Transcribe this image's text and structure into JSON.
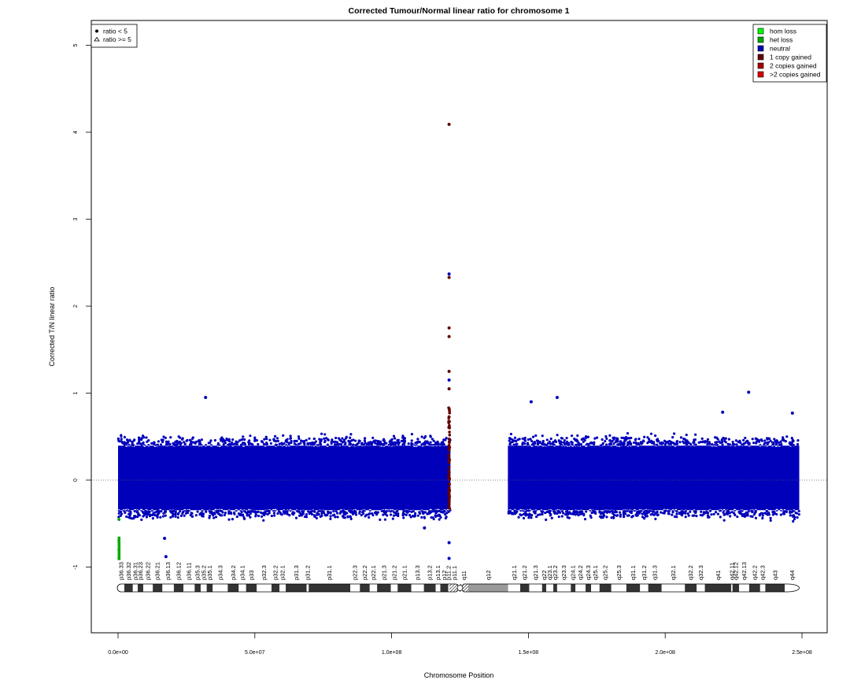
{
  "chart_data": {
    "type": "scatter",
    "title": "Corrected Tumour/Normal linear ratio for chromosome  1",
    "xlabel": "Chromosome Position",
    "ylabel": "Corrected T/N linear ratio",
    "xlim": [
      0,
      250000000
    ],
    "ylim": [
      -1.8,
      5.2
    ],
    "x_tick_labels": [
      {
        "value": 0,
        "label": "0.0e+00"
      },
      {
        "value": 50000000,
        "label": "5.0e+07"
      },
      {
        "value": 100000000,
        "label": "1.0e+08"
      },
      {
        "value": 150000000,
        "label": "1.5e+08"
      },
      {
        "value": 200000000,
        "label": "2.0e+08"
      },
      {
        "value": 250000000,
        "label": "2.5e+08"
      }
    ],
    "y_tick_labels": [
      {
        "value": -1,
        "label": "-1"
      },
      {
        "value": 0,
        "label": "0"
      },
      {
        "value": 1,
        "label": "1"
      },
      {
        "value": 2,
        "label": "2"
      },
      {
        "value": 3,
        "label": "3"
      },
      {
        "value": 4,
        "label": "4"
      },
      {
        "value": 5,
        "label": "5"
      }
    ],
    "reference_line": {
      "y": 0,
      "style": "dotted"
    },
    "shape_legend": {
      "placement": "top-left",
      "entries": [
        {
          "symbol": "filled-circle",
          "label": "ratio < 5"
        },
        {
          "symbol": "open-triangle",
          "label": "ratio >= 5"
        }
      ]
    },
    "color_legend": {
      "placement": "top-right",
      "entries": [
        {
          "label": "hom loss",
          "color": "#00ff00"
        },
        {
          "label": "het loss",
          "color": "#00aa00"
        },
        {
          "label": "neutral",
          "color": "#0000bb"
        },
        {
          "label": "1 copy gained",
          "color": "#660000"
        },
        {
          "label": "2 copies gained",
          "color": "#aa0000"
        },
        {
          "label": ">2 copies gained",
          "color": "#dd0000"
        }
      ]
    },
    "series": [
      {
        "name": "neutral",
        "color": "#0000bb",
        "description_ranges": [
          {
            "x_start": 0,
            "x_end": 121500000,
            "y_min": -0.4,
            "y_max": 0.45
          },
          {
            "x_start": 142500000,
            "x_end": 249000000,
            "y_min": -0.4,
            "y_max": 0.45
          }
        ],
        "outliers": [
          {
            "x": 32000000,
            "y": 0.95
          },
          {
            "x": 160500000,
            "y": 0.95
          },
          {
            "x": 151000000,
            "y": 0.9
          },
          {
            "x": 230500000,
            "y": 1.01
          },
          {
            "x": 221000000,
            "y": 0.78
          },
          {
            "x": 246500000,
            "y": 0.77
          },
          {
            "x": 17000000,
            "y": -0.67
          },
          {
            "x": 17500000,
            "y": -0.88
          },
          {
            "x": 121000000,
            "y": 2.37
          },
          {
            "x": 121000000,
            "y": 1.15
          },
          {
            "x": 121000000,
            "y": -0.72
          },
          {
            "x": 121000000,
            "y": -0.9
          },
          {
            "x": 112000000,
            "y": -0.55
          }
        ]
      },
      {
        "name": "het loss",
        "color": "#00aa00",
        "points": [
          {
            "x": 300000,
            "y": -0.45
          },
          {
            "x": 300000,
            "y": -0.7
          },
          {
            "x": 300000,
            "y": -0.8
          },
          {
            "x": 300000,
            "y": -0.9
          }
        ]
      },
      {
        "name": "1 copy gained",
        "color": "#660000",
        "points": [
          {
            "x": 121000000,
            "y": 4.09
          },
          {
            "x": 121000000,
            "y": 2.33
          },
          {
            "x": 121000000,
            "y": 1.75
          },
          {
            "x": 121000000,
            "y": 1.65
          },
          {
            "x": 121000000,
            "y": 1.25
          },
          {
            "x": 121000000,
            "y": 1.05
          }
        ]
      }
    ],
    "ideogram": {
      "x_start": 0,
      "x_end": 249000000,
      "centromere": 125000000,
      "bands": [
        {
          "label": "p36.33",
          "start": 0,
          "end": 2300000,
          "stain": "white"
        },
        {
          "label": "p36.32",
          "start": 2300000,
          "end": 5400000,
          "stain": "dark"
        },
        {
          "label": "p36.31",
          "start": 5400000,
          "end": 7200000,
          "stain": "white"
        },
        {
          "label": "p36.23",
          "start": 7200000,
          "end": 9200000,
          "stain": "dark"
        },
        {
          "label": "p36.22",
          "start": 9200000,
          "end": 12700000,
          "stain": "white"
        },
        {
          "label": "p36.21",
          "start": 12700000,
          "end": 16200000,
          "stain": "dark"
        },
        {
          "label": "p36.13",
          "start": 16200000,
          "end": 20400000,
          "stain": "white"
        },
        {
          "label": "p36.12",
          "start": 20400000,
          "end": 23900000,
          "stain": "dark"
        },
        {
          "label": "p36.11",
          "start": 23900000,
          "end": 28000000,
          "stain": "white"
        },
        {
          "label": "p35.3",
          "start": 28000000,
          "end": 30200000,
          "stain": "dark"
        },
        {
          "label": "p35.2",
          "start": 30200000,
          "end": 32400000,
          "stain": "white"
        },
        {
          "label": "p35.1",
          "start": 32400000,
          "end": 34600000,
          "stain": "dark"
        },
        {
          "label": "p34.3",
          "start": 34600000,
          "end": 40100000,
          "stain": "white"
        },
        {
          "label": "p34.2",
          "start": 40100000,
          "end": 44100000,
          "stain": "dark"
        },
        {
          "label": "p34.1",
          "start": 44100000,
          "end": 46800000,
          "stain": "white"
        },
        {
          "label": "p33",
          "start": 46800000,
          "end": 50700000,
          "stain": "dark"
        },
        {
          "label": "p32.3",
          "start": 50700000,
          "end": 56100000,
          "stain": "white"
        },
        {
          "label": "p32.2",
          "start": 56100000,
          "end": 59000000,
          "stain": "dark"
        },
        {
          "label": "p32.1",
          "start": 59000000,
          "end": 61300000,
          "stain": "white"
        },
        {
          "label": "p31.3",
          "start": 61300000,
          "end": 68900000,
          "stain": "dark"
        },
        {
          "label": "p31.2",
          "start": 68900000,
          "end": 69700000,
          "stain": "white"
        },
        {
          "label": "p31.1",
          "start": 69700000,
          "end": 84900000,
          "stain": "dark"
        },
        {
          "label": "p22.3",
          "start": 84900000,
          "end": 88400000,
          "stain": "white"
        },
        {
          "label": "p22.2",
          "start": 88400000,
          "end": 92000000,
          "stain": "dark"
        },
        {
          "label": "p22.1",
          "start": 92000000,
          "end": 94700000,
          "stain": "white"
        },
        {
          "label": "p21.3",
          "start": 94700000,
          "end": 99700000,
          "stain": "dark"
        },
        {
          "label": "p21.2",
          "start": 99700000,
          "end": 102200000,
          "stain": "white"
        },
        {
          "label": "p21.1",
          "start": 102200000,
          "end": 107200000,
          "stain": "dark"
        },
        {
          "label": "p13.3",
          "start": 107200000,
          "end": 111800000,
          "stain": "white"
        },
        {
          "label": "p13.2",
          "start": 111800000,
          "end": 116100000,
          "stain": "dark"
        },
        {
          "label": "p13.1",
          "start": 116100000,
          "end": 117800000,
          "stain": "white"
        },
        {
          "label": "p12",
          "start": 117800000,
          "end": 120700000,
          "stain": "dark"
        },
        {
          "label": "p11.2",
          "start": 120700000,
          "end": 121100000,
          "stain": "white"
        },
        {
          "label": "p11.1",
          "start": 121100000,
          "end": 125000000,
          "stain": "stalk"
        },
        {
          "label": "q11",
          "start": 125000000,
          "end": 128000000,
          "stain": "stalk"
        },
        {
          "label": "q12",
          "start": 128000000,
          "end": 142600000,
          "stain": "gvar"
        },
        {
          "label": "q21.1",
          "start": 142600000,
          "end": 147000000,
          "stain": "white"
        },
        {
          "label": "q21.2",
          "start": 147000000,
          "end": 150300000,
          "stain": "dark"
        },
        {
          "label": "q21.3",
          "start": 150300000,
          "end": 155000000,
          "stain": "white"
        },
        {
          "label": "q22",
          "start": 155000000,
          "end": 156500000,
          "stain": "dark"
        },
        {
          "label": "q23.1",
          "start": 156500000,
          "end": 159100000,
          "stain": "white"
        },
        {
          "label": "q23.2",
          "start": 159100000,
          "end": 160500000,
          "stain": "dark"
        },
        {
          "label": "q23.3",
          "start": 160500000,
          "end": 165500000,
          "stain": "white"
        },
        {
          "label": "q24.1",
          "start": 165500000,
          "end": 167200000,
          "stain": "dark"
        },
        {
          "label": "q24.2",
          "start": 167200000,
          "end": 170900000,
          "stain": "white"
        },
        {
          "label": "q24.3",
          "start": 170900000,
          "end": 172900000,
          "stain": "dark"
        },
        {
          "label": "q25.1",
          "start": 172900000,
          "end": 176000000,
          "stain": "white"
        },
        {
          "label": "q25.2",
          "start": 176000000,
          "end": 180300000,
          "stain": "dark"
        },
        {
          "label": "q25.3",
          "start": 180300000,
          "end": 185800000,
          "stain": "white"
        },
        {
          "label": "q31.1",
          "start": 185800000,
          "end": 190800000,
          "stain": "dark"
        },
        {
          "label": "q31.2",
          "start": 190800000,
          "end": 193800000,
          "stain": "white"
        },
        {
          "label": "q31.3",
          "start": 193800000,
          "end": 198700000,
          "stain": "dark"
        },
        {
          "label": "q32.1",
          "start": 198700000,
          "end": 207200000,
          "stain": "white"
        },
        {
          "label": "q32.2",
          "start": 207200000,
          "end": 211500000,
          "stain": "dark"
        },
        {
          "label": "q32.3",
          "start": 211500000,
          "end": 214500000,
          "stain": "white"
        },
        {
          "label": "q41",
          "start": 214500000,
          "end": 224100000,
          "stain": "dark"
        },
        {
          "label": "q42.11",
          "start": 224100000,
          "end": 224600000,
          "stain": "white"
        },
        {
          "label": "q42.12",
          "start": 224600000,
          "end": 227000000,
          "stain": "dark"
        },
        {
          "label": "q42.13",
          "start": 227000000,
          "end": 230700000,
          "stain": "white"
        },
        {
          "label": "q42.2",
          "start": 230700000,
          "end": 234700000,
          "stain": "dark"
        },
        {
          "label": "q42.3",
          "start": 234700000,
          "end": 236600000,
          "stain": "white"
        },
        {
          "label": "q43",
          "start": 236600000,
          "end": 243700000,
          "stain": "dark"
        },
        {
          "label": "q44",
          "start": 243700000,
          "end": 249000000,
          "stain": "white"
        }
      ]
    }
  }
}
